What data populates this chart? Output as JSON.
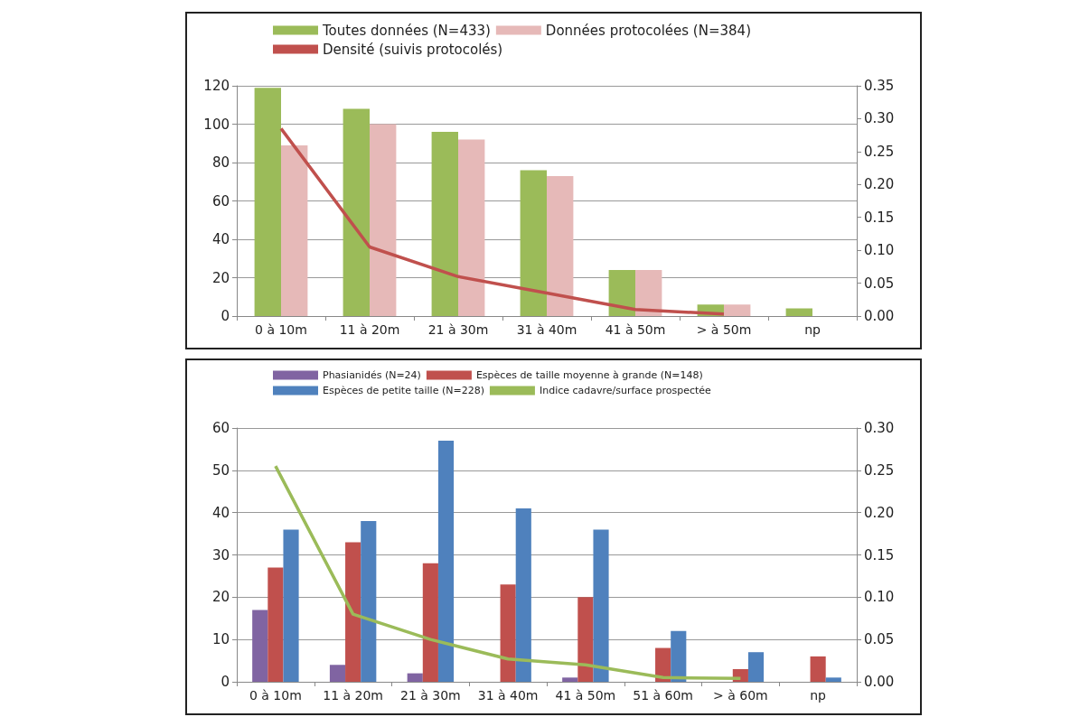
{
  "chart_data": [
    {
      "type": "bar",
      "categories": [
        "0 à 10m",
        "11 à 20m",
        "21 à 30m",
        "31 à 40m",
        "41 à 50m",
        "> à 50m",
        "np"
      ],
      "ylim": [
        0,
        120
      ],
      "yticks": [
        0,
        20,
        40,
        60,
        80,
        100,
        120
      ],
      "y2lim": [
        0,
        0.35
      ],
      "y2ticks": [
        {
          "value": 0,
          "label": "0.00"
        },
        {
          "value": 0.05,
          "label": "0.05"
        },
        {
          "value": 0.1,
          "label": "0.10"
        },
        {
          "value": 0.15,
          "label": "0.15"
        },
        {
          "value": 0.2,
          "label": "0.20"
        },
        {
          "value": 0.25,
          "label": "0.25"
        },
        {
          "value": 0.3,
          "label": "0.30"
        },
        {
          "value": 0.35,
          "label": "0.35"
        }
      ],
      "grid": "y",
      "legend": "top",
      "marker": "none",
      "series": [
        {
          "name": "Toutes données (N=433)",
          "color": "#9bbb59",
          "values": [
            119,
            108,
            96,
            76,
            24,
            6,
            4
          ]
        },
        {
          "name": "Données protocolées (N=384)",
          "color": "#e6b9b8",
          "values": [
            89,
            100,
            92,
            73,
            24,
            6,
            null
          ]
        },
        {
          "name": "Densité (suivis protocolés)",
          "type": "line",
          "axis": "y2",
          "color": "#c0504d",
          "values": [
            0.285,
            0.105,
            0.06,
            0.035,
            0.01,
            0.003,
            null
          ]
        }
      ]
    },
    {
      "type": "bar",
      "categories": [
        "0 à 10m",
        "11 à 20m",
        "21 à 30m",
        "31 à 40m",
        "41 à 50m",
        "51 à 60m",
        "> à 60m",
        "np"
      ],
      "ylim": [
        0,
        60
      ],
      "yticks": [
        0,
        10,
        20,
        30,
        40,
        50,
        60
      ],
      "y2lim": [
        0,
        0.3
      ],
      "y2ticks": [
        {
          "value": 0,
          "label": "0.00"
        },
        {
          "value": 0.05,
          "label": "0.05"
        },
        {
          "value": 0.1,
          "label": "0.10"
        },
        {
          "value": 0.15,
          "label": "0.15"
        },
        {
          "value": 0.2,
          "label": "0.20"
        },
        {
          "value": 0.25,
          "label": "0.25"
        },
        {
          "value": 0.3,
          "label": "0.30"
        }
      ],
      "grid": "y",
      "legend": "top",
      "marker": "none",
      "series": [
        {
          "name": "Phasianidés (N=24)",
          "color": "#8064a2",
          "values": [
            17,
            4,
            2,
            null,
            1,
            null,
            null,
            null
          ]
        },
        {
          "name": "Espèces de taille moyenne à grande (N=148)",
          "color": "#c0504d",
          "values": [
            27,
            33,
            28,
            23,
            20,
            8,
            3,
            6
          ]
        },
        {
          "name": "Espèces de petite taille (N=228)",
          "color": "#4f81bd",
          "values": [
            36,
            38,
            57,
            41,
            36,
            12,
            7,
            1
          ]
        },
        {
          "name": "Indice cadavre/surface prospectée",
          "type": "line",
          "axis": "y2",
          "color": "#9bbb59",
          "values": [
            0.255,
            0.08,
            0.05,
            0.027,
            0.02,
            0.005,
            0.004,
            null
          ]
        }
      ]
    }
  ]
}
